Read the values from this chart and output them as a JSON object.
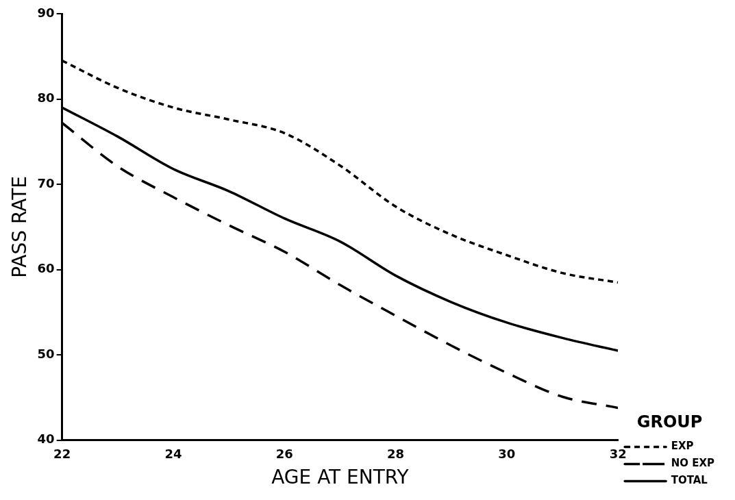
{
  "chart_data": {
    "type": "line",
    "xlabel": "AGE AT ENTRY",
    "ylabel": "PASS RATE",
    "legend_title": "GROUP",
    "legend": "right",
    "grid": false,
    "marker": "none",
    "x": [
      22,
      23,
      24,
      25,
      26,
      27,
      28,
      29,
      30,
      31,
      32
    ],
    "xlim": [
      22,
      32
    ],
    "xticks": [
      22,
      24,
      26,
      28,
      30,
      32
    ],
    "ylim": [
      40,
      90
    ],
    "yticks": [
      40,
      50,
      60,
      70,
      80,
      90
    ],
    "series": [
      {
        "name": "EXP",
        "color": "#000000",
        "line_style": "dotted",
        "values": [
          84.5,
          81.3,
          79,
          77.6,
          76,
          72.2,
          67.4,
          64.1,
          61.7,
          59.6,
          58.5
        ]
      },
      {
        "name": "NO EXP",
        "color": "#000000",
        "line_style": "dashed",
        "values": [
          77.2,
          72.1,
          68.5,
          65.2,
          62.1,
          58.2,
          54.6,
          51.1,
          47.9,
          45.1,
          43.8
        ]
      },
      {
        "name": "TOTAL",
        "color": "#000000",
        "line_style": "solid",
        "values": [
          79,
          75.6,
          71.8,
          69.2,
          66,
          63.3,
          59.3,
          56.2,
          53.8,
          52,
          50.5
        ]
      }
    ]
  }
}
